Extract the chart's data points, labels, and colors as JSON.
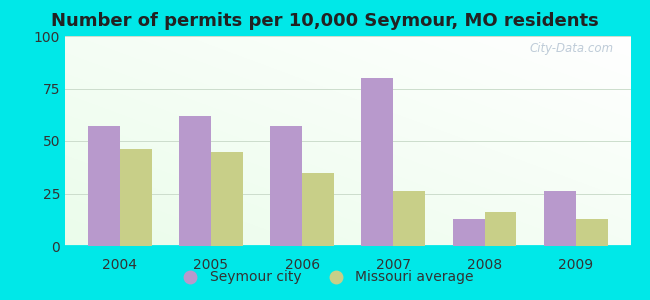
{
  "years": [
    "2004",
    "2005",
    "2006",
    "2007",
    "2008",
    "2009"
  ],
  "seymour": [
    57,
    62,
    57,
    80,
    13,
    26
  ],
  "missouri": [
    46,
    45,
    35,
    26,
    16,
    13
  ],
  "seymour_color": "#b899cc",
  "missouri_color": "#c8cf88",
  "title": "Number of permits per 10,000 Seymour, MO residents",
  "title_fontsize": 13,
  "title_color": "#222222",
  "legend_seymour": "Seymour city",
  "legend_missouri": "Missouri average",
  "ylim": [
    0,
    100
  ],
  "yticks": [
    0,
    25,
    50,
    75,
    100
  ],
  "background_outer": "#00e8e8",
  "watermark": "City-Data.com",
  "bar_width": 0.35
}
